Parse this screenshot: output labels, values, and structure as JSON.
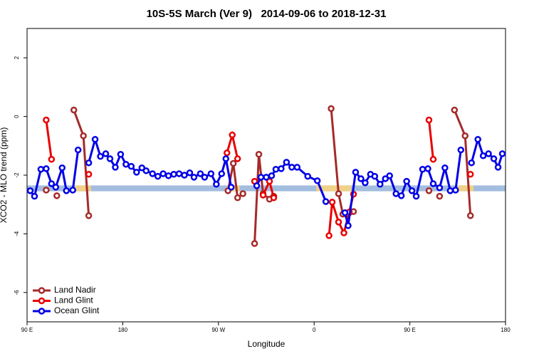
{
  "chart_data": {
    "type": "line",
    "title": "10S-5S March (Ver 9)   2014-09-06 to 2018-12-31",
    "x_label": "Longitude",
    "y_label": "XCO2 - MLO trend (ppm)",
    "xlim": [
      90,
      540
    ],
    "xticks": [
      {
        "value": 90,
        "label": "90 E"
      },
      180,
      {
        "value": 270,
        "label": "90 W"
      },
      {
        "value": 360,
        "label": "0"
      },
      {
        "value": 450,
        "label": "90 E"
      },
      {
        "value": 540,
        "label": "180"
      }
    ],
    "ylim": [
      -7,
      3
    ],
    "yticks": [
      -6,
      -4,
      -2,
      0,
      2
    ],
    "legend": "bottom-left",
    "band": [
      -2.55,
      -2.35
    ],
    "band_color": "#a3bddf",
    "band_highlights": [
      [
        135,
        150
      ],
      [
        278,
        290
      ],
      [
        362,
        395
      ],
      [
        495,
        510
      ]
    ],
    "band_highlight_color": "#f7d37e",
    "series": [
      {
        "name": "Land Nadir",
        "color": "#a52a2a",
        "x": [
          108,
          null,
          118,
          null,
          134,
          143,
          148,
          null,
          279,
          284,
          288,
          293,
          null,
          304,
          308,
          312,
          318,
          322,
          null,
          376,
          383,
          387,
          393,
          397,
          null,
          468,
          null,
          478,
          null,
          492,
          502,
          507
        ],
        "values": [
          -2.51,
          null,
          -2.7,
          null,
          0.22,
          -0.66,
          -3.38,
          null,
          -2.53,
          -1.6,
          -2.77,
          -2.63,
          null,
          -4.33,
          -1.29,
          -2.63,
          -2.82,
          -2.72,
          null,
          0.27,
          -2.63,
          -3.33,
          -3.28,
          -3.24,
          null,
          -2.53,
          null,
          -2.72,
          null,
          0.22,
          -0.66,
          -3.38
        ]
      },
      {
        "name": "Land Glint",
        "color": "#e80000",
        "x": [
          108,
          113,
          null,
          148,
          null,
          278,
          283,
          288,
          null,
          304,
          null,
          312,
          318,
          322,
          null,
          374,
          377,
          383,
          388,
          393,
          397,
          null,
          468,
          472,
          null,
          507
        ],
        "values": [
          -0.12,
          -1.46,
          null,
          -1.97,
          null,
          -1.24,
          -0.63,
          -1.44,
          null,
          -2.21,
          null,
          -2.68,
          -2.21,
          -2.77,
          null,
          -4.06,
          -2.92,
          -3.6,
          -3.97,
          -3.26,
          -2.65,
          null,
          -0.12,
          -1.46,
          null,
          -1.97
        ]
      },
      {
        "name": "Ocean Glint",
        "color": "#0000e6",
        "x": [
          93,
          97,
          103,
          108,
          113,
          117,
          123,
          127,
          133,
          138,
          null,
          148,
          154,
          159,
          164,
          168,
          173,
          178,
          183,
          188,
          193,
          198,
          202,
          208,
          213,
          218,
          223,
          228,
          233,
          238,
          243,
          247,
          253,
          257,
          263,
          268,
          273,
          277,
          282,
          null,
          306,
          310,
          315,
          320,
          324,
          329,
          334,
          339,
          344,
          354,
          363,
          371,
          null,
          389,
          392,
          399,
          404,
          408,
          413,
          417,
          422,
          427,
          431,
          437,
          442,
          447,
          452,
          456,
          462,
          467,
          472,
          478,
          483,
          488,
          493,
          498,
          null,
          508,
          514,
          519,
          524,
          529,
          533,
          537
        ],
        "values": [
          -2.53,
          -2.72,
          -1.8,
          -1.78,
          -2.29,
          -2.41,
          -1.75,
          -2.53,
          -2.51,
          -1.14,
          null,
          -1.58,
          -0.78,
          -1.36,
          -1.27,
          -1.44,
          -1.73,
          -1.29,
          -1.63,
          -1.7,
          -1.9,
          -1.75,
          -1.85,
          -1.95,
          -2.04,
          -1.95,
          -2.02,
          -1.97,
          -1.95,
          -2.0,
          -1.92,
          -2.07,
          -1.95,
          -2.07,
          -1.95,
          -2.31,
          -1.95,
          -1.44,
          -2.41,
          null,
          -2.36,
          -2.07,
          -2.07,
          -2.02,
          -1.8,
          -1.78,
          -1.56,
          -1.73,
          -1.73,
          -2.04,
          -2.19,
          -2.9,
          null,
          -3.28,
          -3.72,
          -1.9,
          -2.12,
          -2.26,
          -1.97,
          -2.04,
          -2.31,
          -2.12,
          -2.02,
          -2.63,
          -2.7,
          -2.21,
          -2.53,
          -2.72,
          -1.8,
          -1.78,
          -2.29,
          -2.43,
          -1.75,
          -2.53,
          -2.51,
          -1.14,
          null,
          -1.58,
          -0.78,
          -1.34,
          -1.27,
          -1.44,
          -1.73,
          -1.27
        ]
      }
    ]
  }
}
